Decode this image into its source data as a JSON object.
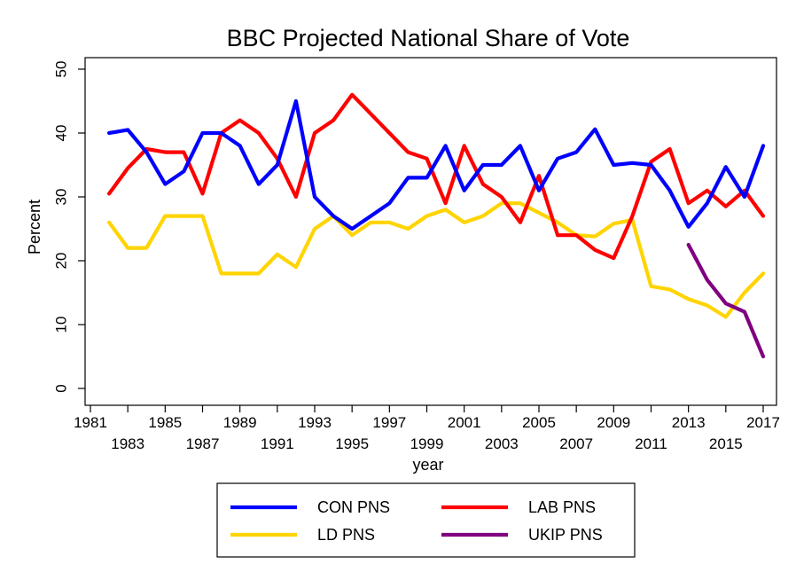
{
  "chart_data": {
    "type": "line",
    "title": "BBC Projected National Share of Vote",
    "xlabel": "year",
    "ylabel": "Percent",
    "xlim": [
      1981,
      2017
    ],
    "ylim": [
      0,
      50
    ],
    "x_ticks_top": [
      "1981",
      "1985",
      "1989",
      "1993",
      "1997",
      "2001",
      "2005",
      "2009",
      "2013",
      "2017"
    ],
    "x_ticks_bottom": [
      "1983",
      "1987",
      "1991",
      "1995",
      "1999",
      "2003",
      "2007",
      "2011",
      "2015"
    ],
    "y_ticks": [
      "0",
      "10",
      "20",
      "30",
      "40",
      "50"
    ],
    "grid": false,
    "legend_position": "bottom",
    "series": [
      {
        "name": "CON PNS",
        "color": "#0000ff",
        "points": [
          [
            1982,
            40
          ],
          [
            1983,
            40.5
          ],
          [
            1984,
            37
          ],
          [
            1985,
            32
          ],
          [
            1986,
            34
          ],
          [
            1987,
            40
          ],
          [
            1988,
            40
          ],
          [
            1989,
            38
          ],
          [
            1990,
            32
          ],
          [
            1991,
            35
          ],
          [
            1992,
            45
          ],
          [
            1993,
            30
          ],
          [
            1994,
            27
          ],
          [
            1995,
            25
          ],
          [
            1996,
            27
          ],
          [
            1997,
            29
          ],
          [
            1998,
            33
          ],
          [
            1999,
            33
          ],
          [
            2000,
            38
          ],
          [
            2001,
            31
          ],
          [
            2002,
            35
          ],
          [
            2003,
            35
          ],
          [
            2004,
            38
          ],
          [
            2005,
            31
          ],
          [
            2006,
            36
          ],
          [
            2007,
            37
          ],
          [
            2008,
            40.6
          ],
          [
            2009,
            35
          ],
          [
            2010,
            35.3
          ],
          [
            2011,
            35
          ],
          [
            2012,
            31
          ],
          [
            2013,
            25.3
          ],
          [
            2014,
            29
          ],
          [
            2015,
            34.7
          ],
          [
            2016,
            30
          ],
          [
            2017,
            38
          ]
        ]
      },
      {
        "name": "LAB PNS",
        "color": "#ff0000",
        "points": [
          [
            1982,
            30.5
          ],
          [
            1983,
            34.5
          ],
          [
            1984,
            37.5
          ],
          [
            1985,
            37
          ],
          [
            1986,
            37
          ],
          [
            1987,
            30.5
          ],
          [
            1988,
            40
          ],
          [
            1989,
            42
          ],
          [
            1990,
            40
          ],
          [
            1991,
            36
          ],
          [
            1992,
            30
          ],
          [
            1993,
            40
          ],
          [
            1994,
            42
          ],
          [
            1995,
            46
          ],
          [
            1996,
            43
          ],
          [
            1997,
            40
          ],
          [
            1998,
            37
          ],
          [
            1999,
            36
          ],
          [
            2000,
            29
          ],
          [
            2001,
            38
          ],
          [
            2002,
            32
          ],
          [
            2003,
            30
          ],
          [
            2004,
            26
          ],
          [
            2005,
            33.3
          ],
          [
            2006,
            24
          ],
          [
            2007,
            24
          ],
          [
            2008,
            21.7
          ],
          [
            2009,
            20.4
          ],
          [
            2010,
            27
          ],
          [
            2011,
            35.5
          ],
          [
            2012,
            37.5
          ],
          [
            2013,
            29
          ],
          [
            2014,
            31
          ],
          [
            2015,
            28.5
          ],
          [
            2016,
            31
          ],
          [
            2017,
            27
          ]
        ]
      },
      {
        "name": "LD PNS",
        "color": "#ffd400",
        "points": [
          [
            1982,
            26
          ],
          [
            1983,
            22
          ],
          [
            1984,
            22
          ],
          [
            1985,
            27
          ],
          [
            1986,
            27
          ],
          [
            1987,
            27
          ],
          [
            1988,
            18
          ],
          [
            1989,
            18
          ],
          [
            1990,
            18
          ],
          [
            1991,
            21
          ],
          [
            1992,
            19
          ],
          [
            1993,
            25
          ],
          [
            1994,
            27
          ],
          [
            1995,
            24
          ],
          [
            1996,
            26
          ],
          [
            1997,
            26
          ],
          [
            1998,
            25
          ],
          [
            1999,
            27
          ],
          [
            2000,
            28
          ],
          [
            2001,
            26
          ],
          [
            2002,
            27
          ],
          [
            2003,
            29
          ],
          [
            2004,
            29
          ],
          [
            2005,
            27.5
          ],
          [
            2006,
            26
          ],
          [
            2007,
            24
          ],
          [
            2008,
            23.8
          ],
          [
            2009,
            25.8
          ],
          [
            2010,
            26.4
          ],
          [
            2011,
            16
          ],
          [
            2012,
            15.5
          ],
          [
            2013,
            14
          ],
          [
            2014,
            13
          ],
          [
            2015,
            11.2
          ],
          [
            2016,
            15
          ],
          [
            2017,
            18
          ]
        ]
      },
      {
        "name": "UKIP PNS",
        "color": "#800080",
        "points": [
          [
            2013,
            22.5
          ],
          [
            2014,
            17
          ],
          [
            2015,
            13.3
          ],
          [
            2016,
            12
          ],
          [
            2017,
            5
          ]
        ]
      }
    ]
  }
}
